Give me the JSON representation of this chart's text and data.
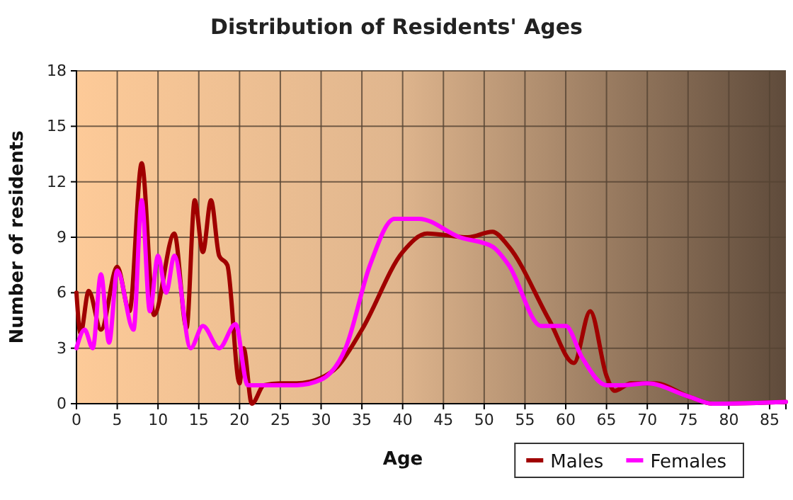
{
  "chart_data": {
    "type": "line",
    "title": "Distribution of Residents' Ages",
    "xlabel": "Age",
    "ylabel": "Number of residents",
    "xlim": [
      0,
      87
    ],
    "xticks": [
      0,
      5,
      10,
      15,
      20,
      25,
      30,
      35,
      40,
      45,
      50,
      55,
      60,
      65,
      70,
      75,
      80,
      85
    ],
    "ylim": [
      0,
      18
    ],
    "yticks": [
      0,
      3,
      6,
      9,
      12,
      15,
      18
    ],
    "grid": true,
    "legend": "bottom right",
    "marker": "none",
    "line_style": "solid",
    "series": [
      {
        "name": "Males",
        "color": "#a00000",
        "x": [
          0,
          0.5,
          1.5,
          3,
          5,
          6.5,
          8,
          9.5,
          12,
          13.5,
          14.5,
          15.5,
          16.5,
          17.5,
          18.5,
          20,
          20.5,
          21.5,
          23,
          25,
          27,
          30,
          32,
          35,
          40,
          43,
          48,
          51,
          53,
          58,
          61,
          63,
          65,
          66,
          68,
          71,
          75,
          78,
          87
        ],
        "values": [
          6,
          3.8,
          6.1,
          4,
          7.4,
          5,
          13,
          4.8,
          9.2,
          4.1,
          11,
          8.2,
          11,
          8,
          7.5,
          1.1,
          3,
          0,
          1,
          1.1,
          1.1,
          1.4,
          2,
          4,
          8.2,
          9.2,
          9,
          9.3,
          8.5,
          4.5,
          2.2,
          5,
          1.5,
          0.7,
          1.1,
          1.1,
          0.4,
          0,
          0.1
        ]
      },
      {
        "name": "Females",
        "color": "#ff00ff",
        "x": [
          0,
          1,
          2,
          3,
          4,
          5,
          7,
          8,
          9,
          10,
          11,
          12,
          14,
          15.5,
          17.5,
          19.5,
          21,
          23,
          27,
          30,
          33,
          36,
          39,
          42,
          47,
          51,
          53,
          57,
          60,
          62,
          65,
          67,
          70,
          75,
          78,
          87
        ],
        "values": [
          3,
          4,
          3,
          7,
          3.3,
          7.2,
          4,
          11,
          5,
          8,
          6,
          8,
          3,
          4.2,
          3,
          4.3,
          1,
          1,
          1,
          1.3,
          3,
          7.5,
          10,
          10,
          9,
          8.5,
          7.5,
          4.2,
          4.2,
          2.5,
          1,
          1,
          1.1,
          0.4,
          0,
          0.1
        ]
      }
    ]
  }
}
